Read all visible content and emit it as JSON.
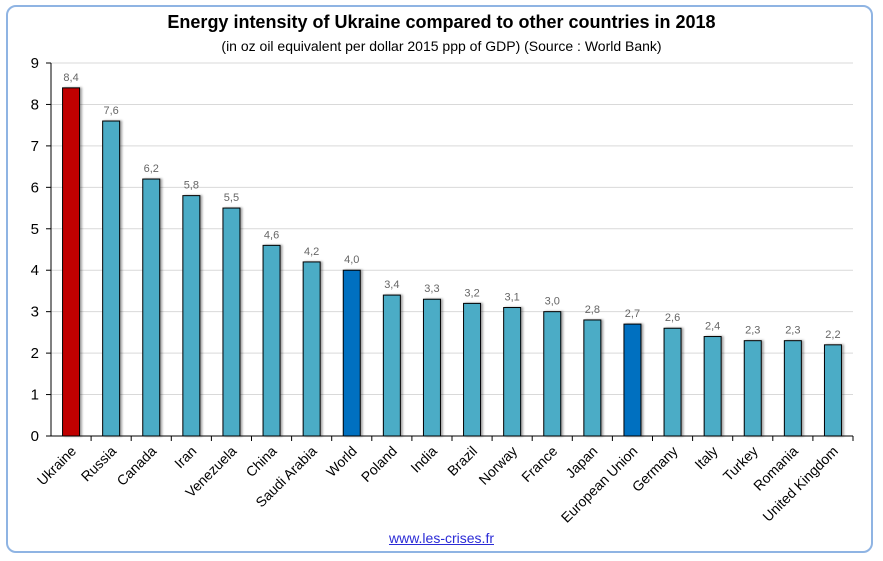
{
  "chart_data": {
    "type": "bar",
    "title": "Energy intensity of Ukraine compared to other countries in 2018",
    "subtitle": "(in oz oil equivalent per dollar 2015 ppp of GDP) (Source : World Bank)",
    "xlabel": "",
    "ylabel": "",
    "ylim": [
      0,
      9
    ],
    "yticks": [
      0,
      1,
      2,
      3,
      4,
      5,
      6,
      7,
      8,
      9
    ],
    "grid": true,
    "categories": [
      "Ukraine",
      "Russia",
      "Canada",
      "Iran",
      "Venezuela",
      "China",
      "Saudi Arabia",
      "World",
      "Poland",
      "India",
      "Brazil",
      "Norway",
      "France",
      "Japan",
      "European Union",
      "Germany",
      "Italy",
      "Turkey",
      "Romania",
      "United Kingdom"
    ],
    "values": [
      8.4,
      7.6,
      6.2,
      5.8,
      5.5,
      4.6,
      4.2,
      4.0,
      3.4,
      3.3,
      3.2,
      3.1,
      3.0,
      2.8,
      2.7,
      2.6,
      2.4,
      2.3,
      2.3,
      2.2
    ],
    "data_labels": [
      "8,4",
      "7,6",
      "6,2",
      "5,8",
      "5,5",
      "4,6",
      "4,2",
      "4,0",
      "3,4",
      "3,3",
      "3,2",
      "3,1",
      "3,0",
      "2,8",
      "2,7",
      "2,6",
      "2,4",
      "2,3",
      "2,3",
      "2,2"
    ],
    "bar_colors": [
      "#c00000",
      "#4bacc6",
      "#4bacc6",
      "#4bacc6",
      "#4bacc6",
      "#4bacc6",
      "#4bacc6",
      "#0070c0",
      "#4bacc6",
      "#4bacc6",
      "#4bacc6",
      "#4bacc6",
      "#4bacc6",
      "#4bacc6",
      "#0070c0",
      "#4bacc6",
      "#4bacc6",
      "#4bacc6",
      "#4bacc6",
      "#4bacc6"
    ]
  },
  "footer": {
    "source_link": "www.les-crises.fr"
  }
}
